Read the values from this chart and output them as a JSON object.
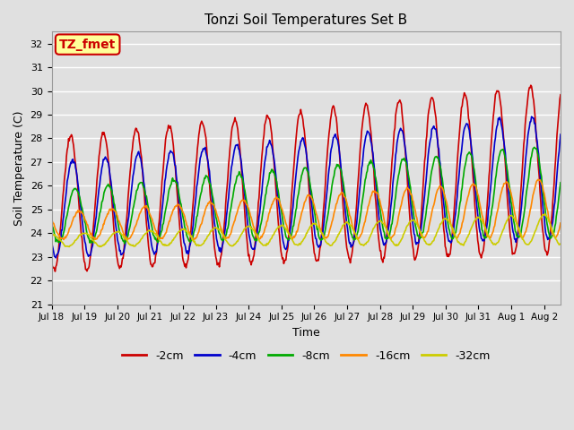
{
  "title": "Tonzi Soil Temperatures Set B",
  "xlabel": "Time",
  "ylabel": "Soil Temperature (C)",
  "ylim": [
    21.0,
    32.5
  ],
  "yticks": [
    21.0,
    22.0,
    23.0,
    24.0,
    25.0,
    26.0,
    27.0,
    28.0,
    29.0,
    30.0,
    31.0,
    32.0
  ],
  "background_color": "#e0e0e0",
  "plot_bg_color": "#e0e0e0",
  "legend_labels": [
    "-2cm",
    "-4cm",
    "-8cm",
    "-16cm",
    "-32cm"
  ],
  "legend_colors": [
    "#cc0000",
    "#0000cc",
    "#00aa00",
    "#ff8800",
    "#cccc00"
  ],
  "line_widths": [
    1.2,
    1.2,
    1.2,
    1.2,
    1.2
  ],
  "annotation_text": "TZ_fmet",
  "annotation_bg": "#ffff99",
  "annotation_border": "#cc0000",
  "n_points": 720,
  "start_day": 0,
  "end_day": 15.5,
  "x_tick_positions": [
    0,
    1,
    2,
    3,
    4,
    5,
    6,
    7,
    8,
    9,
    10,
    11,
    12,
    13,
    14,
    15
  ],
  "x_tick_labels": [
    "Jul 18",
    "Jul 19",
    "Jul 20",
    "Jul 21",
    "Jul 22",
    "Jul 23",
    "Jul 24",
    "Jul 25",
    "Jul 26",
    "Jul 27",
    "Jul 28",
    "Jul 29",
    "Jul 30",
    "Jul 31",
    "Aug 1",
    "Aug 2"
  ],
  "fig_width": 6.4,
  "fig_height": 4.8,
  "dpi": 100
}
